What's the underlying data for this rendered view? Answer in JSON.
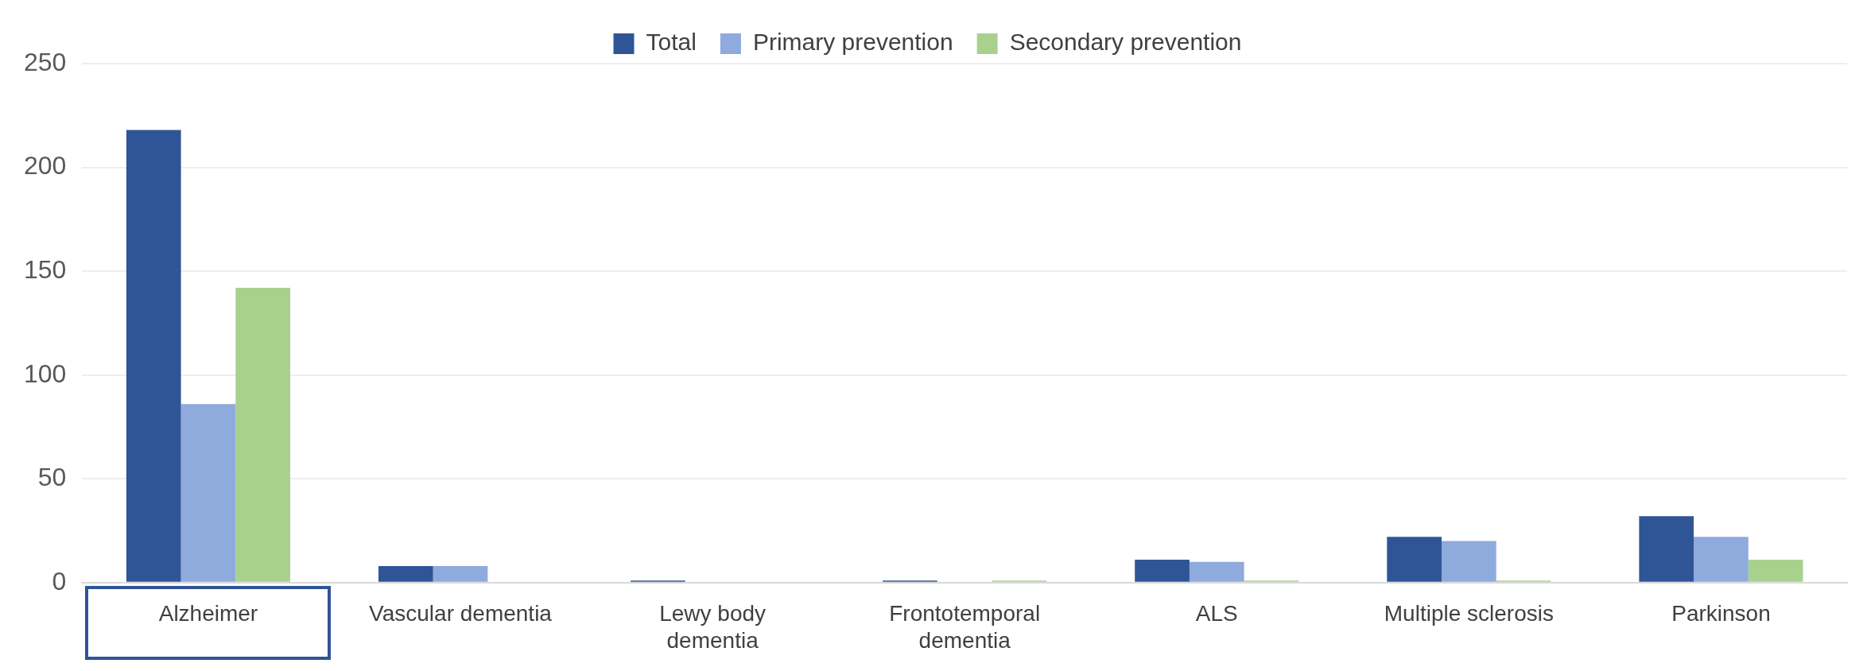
{
  "chart_data": {
    "type": "bar",
    "categories": [
      "Alzheimer",
      "Vascular dementia",
      "Lewy body dementia",
      "Frontotemporal dementia",
      "ALS",
      "Multiple sclerosis",
      "Parkinson"
    ],
    "series": [
      {
        "name": "Total",
        "color": "#2f5597",
        "values": [
          218,
          8,
          1,
          1,
          11,
          22,
          32
        ]
      },
      {
        "name": "Primary prevention",
        "color": "#8faadc",
        "values": [
          86,
          8,
          0,
          0,
          10,
          20,
          22
        ]
      },
      {
        "name": "Secondary prevention",
        "color": "#a9d18e",
        "values": [
          142,
          0,
          0,
          1,
          1,
          1,
          11
        ]
      }
    ],
    "ylim": [
      0,
      250
    ],
    "yticks": [
      0,
      50,
      100,
      150,
      200,
      250
    ],
    "grid": "y",
    "legend": "top"
  }
}
